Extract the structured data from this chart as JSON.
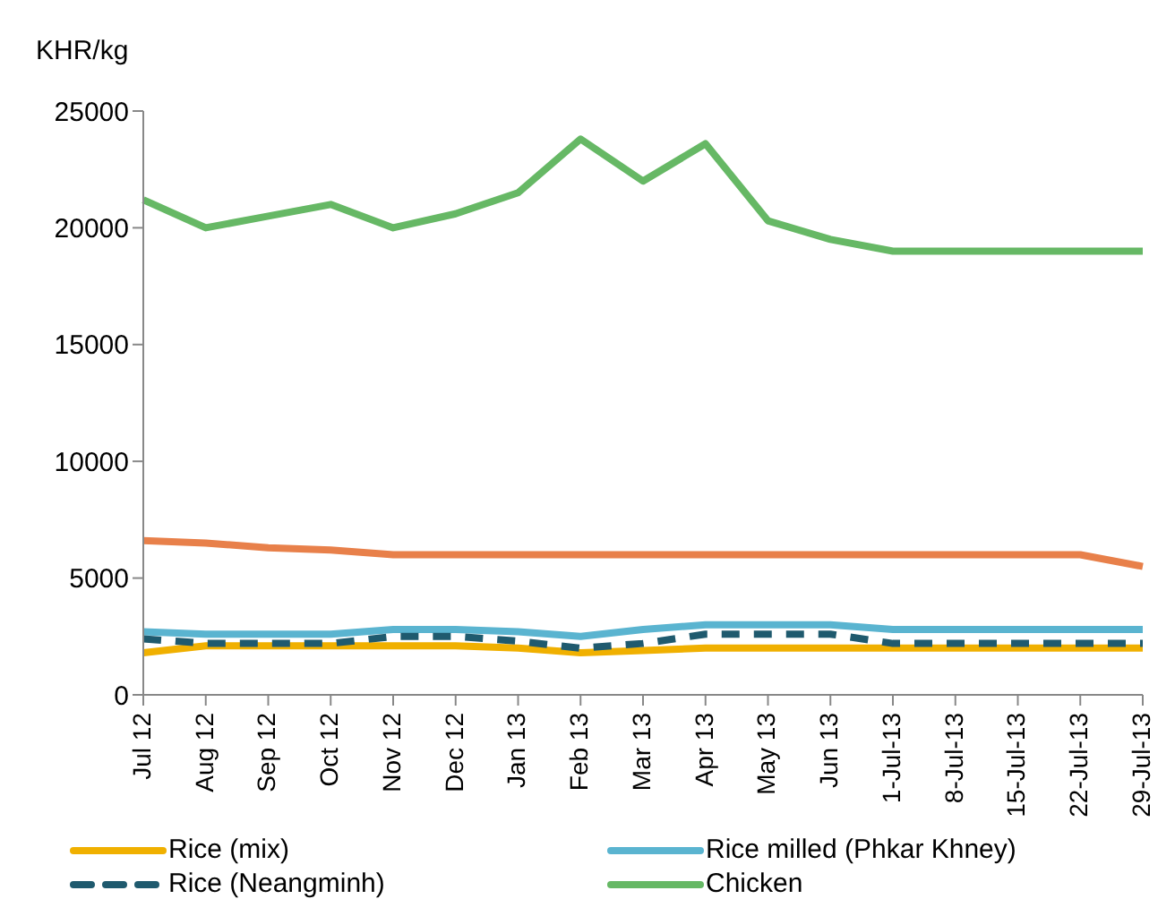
{
  "chart_data": {
    "type": "line",
    "ylabel": "KHR/kg",
    "categories": [
      "Jul 12",
      "Aug 12",
      "Sep 12",
      "Oct 12",
      "Nov 12",
      "Dec 12",
      "Jan 13",
      "Feb 13",
      "Mar 13",
      "Apr 13",
      "May 13",
      "Jun 13",
      "1-Jul-13",
      "8-Jul-13",
      "15-Jul-13",
      "22-Jul-13",
      "29-Jul-13"
    ],
    "series": [
      {
        "name": "Rice (mix)",
        "color": "#f0b000",
        "values": [
          1800,
          2100,
          2100,
          2100,
          2100,
          2100,
          2000,
          1800,
          1900,
          2000,
          2000,
          2000,
          2000,
          2000,
          2000,
          2000,
          2000
        ]
      },
      {
        "name": "Rice milled (Phkar Khney)",
        "color": "#5ab4d0",
        "values": [
          2700,
          2600,
          2600,
          2600,
          2800,
          2800,
          2700,
          2500,
          2800,
          3000,
          3000,
          3000,
          2800,
          2800,
          2800,
          2800,
          2800
        ]
      },
      {
        "name": "Rice (Neangminh)",
        "color": "#1f5a6e",
        "line_style": "dashed",
        "values": [
          2400,
          2200,
          2200,
          2200,
          2500,
          2500,
          2300,
          2000,
          2200,
          2600,
          2600,
          2600,
          2200,
          2200,
          2200,
          2200,
          2200
        ]
      },
      {
        "name": "Chicken",
        "color": "#66b865",
        "values": [
          21200,
          20000,
          20500,
          21000,
          20000,
          20600,
          21500,
          23800,
          22000,
          23600,
          20300,
          19500,
          19000,
          19000,
          19000,
          19000,
          19000
        ]
      },
      {
        "color": "#e8804a",
        "values": [
          6600,
          6500,
          6300,
          6200,
          6000,
          6000,
          6000,
          6000,
          6000,
          6000,
          6000,
          6000,
          6000,
          6000,
          6000,
          6000,
          5500
        ]
      }
    ],
    "ylim": [
      0,
      25000
    ],
    "yticks": [
      0,
      5000,
      10000,
      15000,
      20000,
      25000
    ],
    "grid": false,
    "legend": "bottom",
    "marker": "none"
  }
}
